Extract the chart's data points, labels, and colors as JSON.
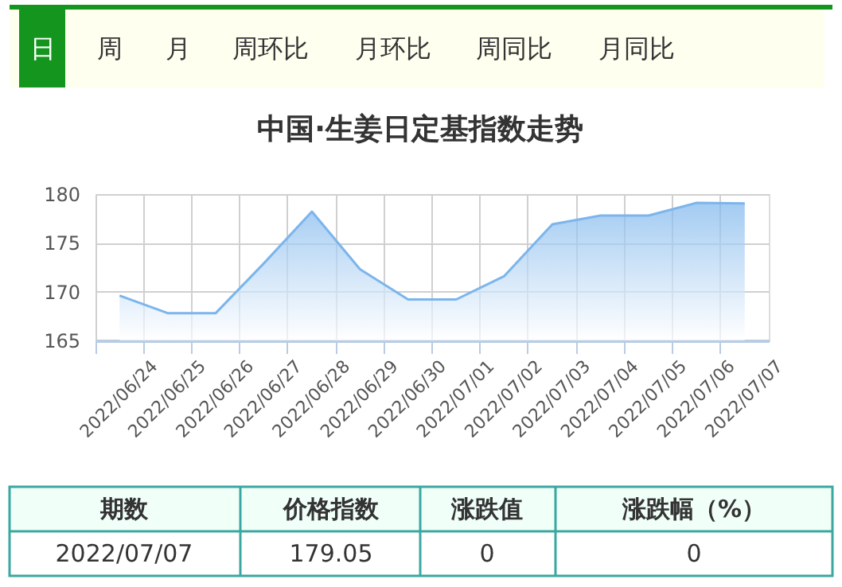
{
  "chart_data": {
    "type": "area",
    "title": "中国·生姜日定基指数走势",
    "categories": [
      "2022/06/24",
      "2022/06/25",
      "2022/06/26",
      "2022/06/27",
      "2022/06/28",
      "2022/06/29",
      "2022/06/30",
      "2022/07/01",
      "2022/07/02",
      "2022/07/03",
      "2022/07/04",
      "2022/07/05",
      "2022/07/06",
      "2022/07/07"
    ],
    "series": [
      {
        "color": "#7cb5ec",
        "values": [
          169.6,
          167.8,
          167.8,
          172.9,
          178.2,
          172.3,
          169.2,
          169.2,
          171.6,
          176.9,
          177.8,
          177.8,
          179.1,
          179.05
        ]
      }
    ],
    "ylim": [
      165,
      180
    ],
    "yticks": [
      165,
      170,
      175,
      180
    ],
    "grid": true,
    "annotations": [
      "日",
      "周",
      "月",
      "周环比",
      "月环比",
      "周同比",
      "月同比",
      "期数",
      "价格指数",
      "涨跌值",
      "涨跌幅（%）",
      "2022/07/07",
      "179.05",
      "0",
      "0"
    ]
  }
}
